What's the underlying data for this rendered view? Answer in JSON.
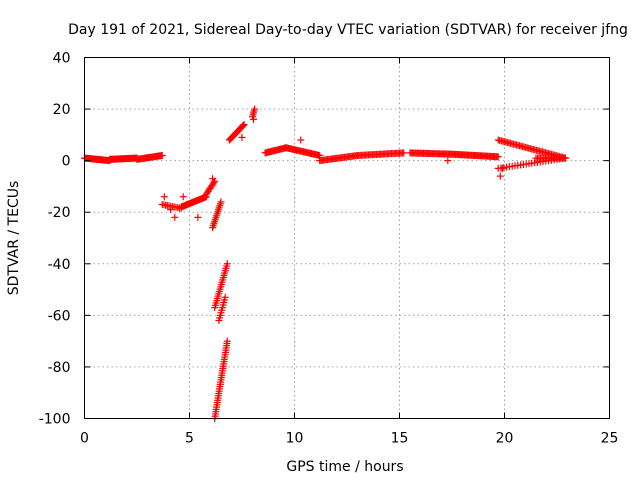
{
  "chart_data": {
    "type": "scatter",
    "title": "Day 191 of 2021, Sidereal Day-to-day VTEC variation (SDTVAR) for receiver jfng",
    "xlabel": "GPS time / hours",
    "ylabel": "SDTVAR / TECUs",
    "xlim": [
      0,
      25
    ],
    "ylim": [
      -100,
      40
    ],
    "xticks": [
      0,
      5,
      10,
      15,
      20,
      25
    ],
    "yticks": [
      -100,
      -80,
      -60,
      -40,
      -20,
      0,
      20,
      40
    ],
    "grid": true,
    "marker": "+",
    "color": "#ff0000",
    "segments": [
      {
        "x": [
          0.0,
          1.2
        ],
        "y": [
          1.0,
          0.0
        ],
        "n": 30
      },
      {
        "x": [
          1.2,
          2.5
        ],
        "y": [
          0.5,
          1.0
        ],
        "n": 30
      },
      {
        "x": [
          2.5,
          3.7
        ],
        "y": [
          0.5,
          2.0
        ],
        "n": 25
      },
      {
        "x": [
          3.7,
          4.6
        ],
        "y": [
          -17.0,
          -18.5
        ],
        "n": 12
      },
      {
        "x": [
          4.6,
          5.8
        ],
        "y": [
          -18.0,
          -14.0
        ],
        "n": 30
      },
      {
        "x": [
          5.8,
          6.2
        ],
        "y": [
          -13.0,
          -8.0
        ],
        "n": 10
      },
      {
        "x": [
          6.1,
          6.5
        ],
        "y": [
          -26.0,
          -16.0
        ],
        "n": 14
      },
      {
        "x": [
          6.2,
          6.8
        ],
        "y": [
          -57.0,
          -40.0
        ],
        "n": 20
      },
      {
        "x": [
          6.4,
          6.7
        ],
        "y": [
          -62.0,
          -53.0
        ],
        "n": 10
      },
      {
        "x": [
          6.2,
          6.8
        ],
        "y": [
          -100.0,
          -70.0
        ],
        "n": 35
      },
      {
        "x": [
          6.9,
          7.6
        ],
        "y": [
          8.0,
          14.0
        ],
        "n": 20
      },
      {
        "x": [
          8.0,
          8.1
        ],
        "y": [
          17.0,
          20.0
        ],
        "n": 5
      },
      {
        "x": [
          8.6,
          9.6
        ],
        "y": [
          3.0,
          5.0
        ],
        "n": 20
      },
      {
        "x": [
          9.6,
          11.2
        ],
        "y": [
          5.0,
          2.0
        ],
        "n": 30
      },
      {
        "x": [
          11.2,
          13.0
        ],
        "y": [
          0.0,
          2.0
        ],
        "n": 30
      },
      {
        "x": [
          13.0,
          15.2
        ],
        "y": [
          2.0,
          3.0
        ],
        "n": 35
      },
      {
        "x": [
          15.5,
          17.5
        ],
        "y": [
          3.0,
          2.5
        ],
        "n": 35
      },
      {
        "x": [
          17.5,
          19.7
        ],
        "y": [
          2.5,
          1.5
        ],
        "n": 40
      },
      {
        "x": [
          19.7,
          22.9
        ],
        "y": [
          8.0,
          1.0
        ],
        "n": 45
      },
      {
        "x": [
          19.7,
          22.9
        ],
        "y": [
          -3.0,
          1.0
        ],
        "n": 25
      },
      {
        "x": [
          21.5,
          22.9
        ],
        "y": [
          1.0,
          1.0
        ],
        "n": 20
      }
    ],
    "points": [
      {
        "x": 3.8,
        "y": -14.0
      },
      {
        "x": 4.1,
        "y": -19.0
      },
      {
        "x": 4.3,
        "y": -22.0
      },
      {
        "x": 4.7,
        "y": -14.0
      },
      {
        "x": 5.4,
        "y": -22.0
      },
      {
        "x": 6.1,
        "y": -7.0
      },
      {
        "x": 7.5,
        "y": 9.0
      },
      {
        "x": 8.05,
        "y": 16.0
      },
      {
        "x": 10.3,
        "y": 8.0
      },
      {
        "x": 17.3,
        "y": 0.0
      },
      {
        "x": 19.8,
        "y": -6.0
      },
      {
        "x": 19.9,
        "y": -3.0
      }
    ]
  }
}
